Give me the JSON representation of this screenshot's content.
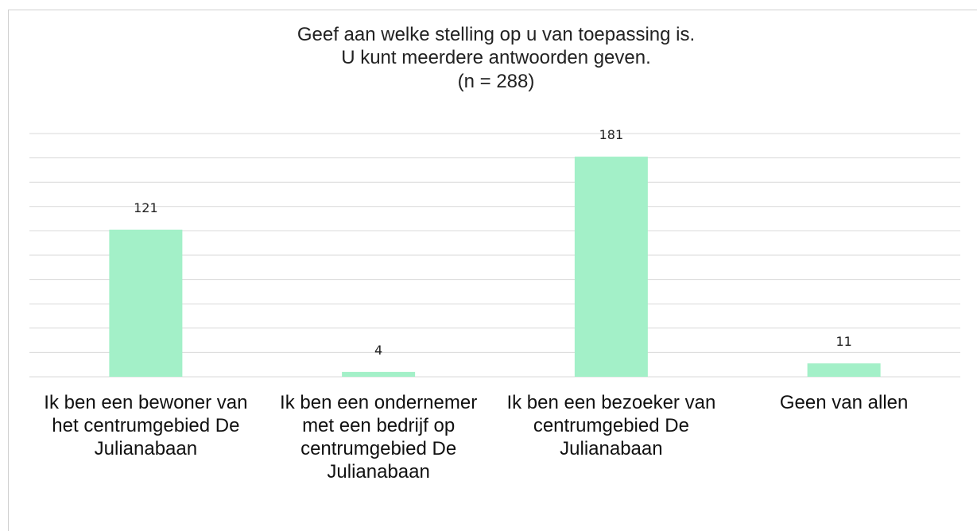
{
  "chart_data": {
    "type": "bar",
    "title": [
      "Geef aan welke stelling op u van toepassing is.",
      "U kunt meerdere antwoorden geven.",
      "(n = 288)"
    ],
    "categories": [
      "Ik ben een bewoner van het centrumgebied De Julianabaan",
      "Ik ben een ondernemer met een bedrijf op centrumgebied De Julianabaan",
      "Ik ben een bezoeker van centrumgebied De Julianabaan",
      "Geen van allen"
    ],
    "values": [
      121,
      4,
      181,
      11
    ],
    "color": "#a3f0c8",
    "ylim": [
      0,
      200
    ],
    "yticks": [
      0,
      20,
      40,
      60,
      80,
      100,
      120,
      140,
      160,
      180,
      200
    ],
    "grid": true
  }
}
